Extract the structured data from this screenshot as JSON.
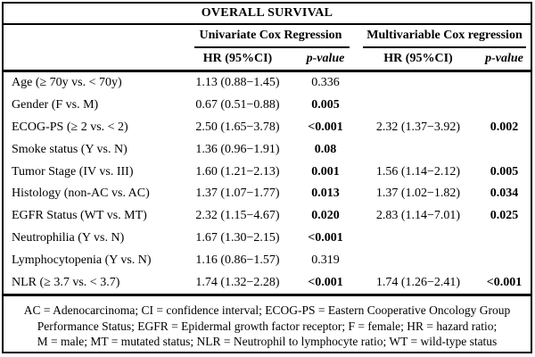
{
  "title": "OVERALL SURVIVAL",
  "colors": {
    "background": "#ffffff",
    "border": "#000000",
    "text": "#000000"
  },
  "groups": {
    "univariate": "Univariate Cox Regression",
    "multivariable": "Multivariable Cox regression"
  },
  "subheaders": {
    "uni_hr": "HR (95%CI)",
    "uni_p": "p-value",
    "multi_hr": "HR (95%CI)",
    "multi_p": "p-value"
  },
  "rows": [
    {
      "label": "Age (≥ 70y vs. < 70y)",
      "uni_hr": "1.13 (0.88−1.45)",
      "uni_p": "0.336",
      "uni_p_bold": false,
      "multi_hr": "",
      "multi_p": "",
      "multi_p_bold": false
    },
    {
      "label": "Gender (F vs. M)",
      "uni_hr": "0.67 (0.51−0.88)",
      "uni_p": "0.005",
      "uni_p_bold": true,
      "multi_hr": "",
      "multi_p": "",
      "multi_p_bold": false
    },
    {
      "label": "ECOG-PS (≥ 2 vs. < 2)",
      "uni_hr": "2.50 (1.65−3.78)",
      "uni_p": "<0.001",
      "uni_p_bold": true,
      "multi_hr": "2.32 (1.37−3.92)",
      "multi_p": "0.002",
      "multi_p_bold": true
    },
    {
      "label": "Smoke status (Y vs. N)",
      "uni_hr": "1.36 (0.96−1.91)",
      "uni_p": "0.08",
      "uni_p_bold": true,
      "multi_hr": "",
      "multi_p": "",
      "multi_p_bold": false
    },
    {
      "label": "Tumor Stage (IV vs. III)",
      "uni_hr": "1.60 (1.21−2.13)",
      "uni_p": "0.001",
      "uni_p_bold": true,
      "multi_hr": "1.56 (1.14−2.12)",
      "multi_p": "0.005",
      "multi_p_bold": true
    },
    {
      "label": "Histology (non-AC vs. AC)",
      "uni_hr": "1.37 (1.07−1.77)",
      "uni_p": "0.013",
      "uni_p_bold": true,
      "multi_hr": "1.37 (1.02−1.82)",
      "multi_p": "0.034",
      "multi_p_bold": true
    },
    {
      "label": "EGFR Status (WT vs. MT)",
      "uni_hr": "2.32 (1.15−4.67)",
      "uni_p": "0.020",
      "uni_p_bold": true,
      "multi_hr": "2.83 (1.14−7.01)",
      "multi_p": "0.025",
      "multi_p_bold": true
    },
    {
      "label": "Neutrophilia (Y vs. N)",
      "uni_hr": "1.67 (1.30−2.15)",
      "uni_p": "<0.001",
      "uni_p_bold": true,
      "multi_hr": "",
      "multi_p": "",
      "multi_p_bold": false
    },
    {
      "label": "Lymphocytopenia (Y vs. N)",
      "uni_hr": "1.16 (0.86−1.57)",
      "uni_p": "0.319",
      "uni_p_bold": false,
      "multi_hr": "",
      "multi_p": "",
      "multi_p_bold": false
    },
    {
      "label": "NLR (≥ 3.7 vs. < 3.7)",
      "uni_hr": "1.74 (1.32−2.28)",
      "uni_p": "<0.001",
      "uni_p_bold": true,
      "multi_hr": "1.74 (1.26−2.41)",
      "multi_p": "<0.001",
      "multi_p_bold": true
    }
  ],
  "footer": {
    "line1": "AC = Adenocarcinoma; CI = confidence interval; ECOG-PS = Eastern Cooperative Oncology Group",
    "line2": "Performance Status; EGFR = Epidermal growth factor receptor; F = female; HR = hazard ratio;",
    "line3": "M = male; MT = mutated status; NLR = Neutrophil to lymphocyte ratio; WT = wild-type status"
  }
}
